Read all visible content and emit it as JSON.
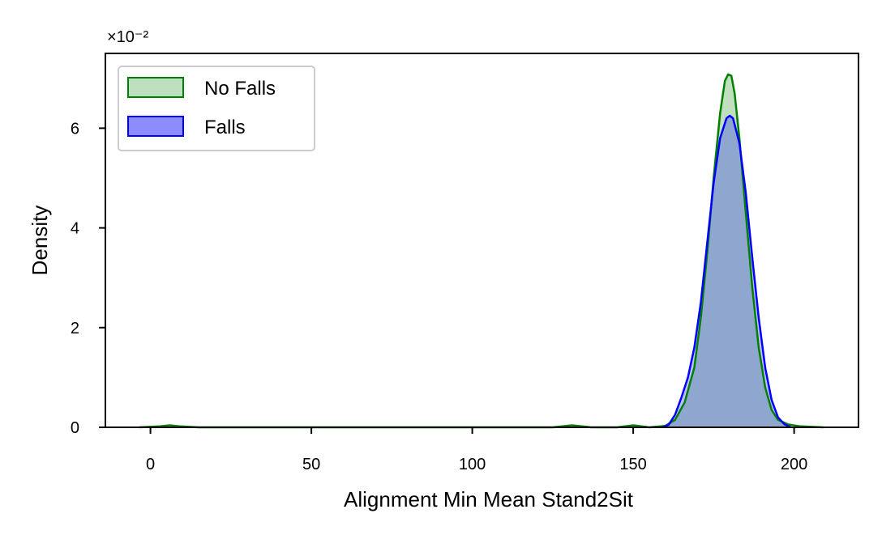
{
  "chart_data": {
    "type": "area",
    "title": "",
    "xlabel": "Alignment Min Mean Stand2Sit",
    "ylabel": "Density",
    "y_offset_text": "×10⁻²",
    "xlim": [
      -14,
      220
    ],
    "ylim": [
      0,
      7.5
    ],
    "x_ticks": [
      0,
      50,
      100,
      150,
      200
    ],
    "y_ticks": [
      0,
      2,
      4,
      6
    ],
    "grid": false,
    "legend_position": "top-left",
    "series": [
      {
        "name": "No Falls",
        "line_color": "#008000",
        "fill_color": "#bfe0bf",
        "points": [
          [
            -3.5,
            0.0
          ],
          [
            3,
            0.02
          ],
          [
            6,
            0.04
          ],
          [
            9,
            0.02
          ],
          [
            15,
            0.0
          ],
          [
            125,
            0.0
          ],
          [
            131,
            0.04
          ],
          [
            137,
            0.0
          ],
          [
            145,
            0.0
          ],
          [
            150,
            0.04
          ],
          [
            155,
            0.0
          ],
          [
            160,
            0.03
          ],
          [
            163,
            0.15
          ],
          [
            166,
            0.5
          ],
          [
            169,
            1.2
          ],
          [
            171,
            2.2
          ],
          [
            173,
            3.5
          ],
          [
            175,
            5.0
          ],
          [
            177,
            6.3
          ],
          [
            178.5,
            6.95
          ],
          [
            179.5,
            7.08
          ],
          [
            180.5,
            7.05
          ],
          [
            181.5,
            6.7
          ],
          [
            183,
            5.8
          ],
          [
            185,
            4.3
          ],
          [
            187,
            2.8
          ],
          [
            189,
            1.6
          ],
          [
            191,
            0.8
          ],
          [
            193,
            0.35
          ],
          [
            195,
            0.15
          ],
          [
            198,
            0.06
          ],
          [
            202,
            0.02
          ],
          [
            209,
            0.0
          ]
        ]
      },
      {
        "name": "Falls",
        "line_color": "#0000ff",
        "fill_color": "#8c8cff",
        "points": [
          [
            159,
            0.0
          ],
          [
            161,
            0.05
          ],
          [
            163,
            0.25
          ],
          [
            165,
            0.6
          ],
          [
            167,
            1.0
          ],
          [
            169,
            1.6
          ],
          [
            171,
            2.5
          ],
          [
            173,
            3.7
          ],
          [
            175,
            4.9
          ],
          [
            177,
            5.8
          ],
          [
            179,
            6.2
          ],
          [
            180,
            6.25
          ],
          [
            181,
            6.2
          ],
          [
            183,
            5.7
          ],
          [
            185,
            4.7
          ],
          [
            187,
            3.4
          ],
          [
            189,
            2.2
          ],
          [
            191,
            1.2
          ],
          [
            193,
            0.55
          ],
          [
            195,
            0.2
          ],
          [
            197,
            0.06
          ],
          [
            199,
            0.0
          ]
        ]
      }
    ]
  }
}
